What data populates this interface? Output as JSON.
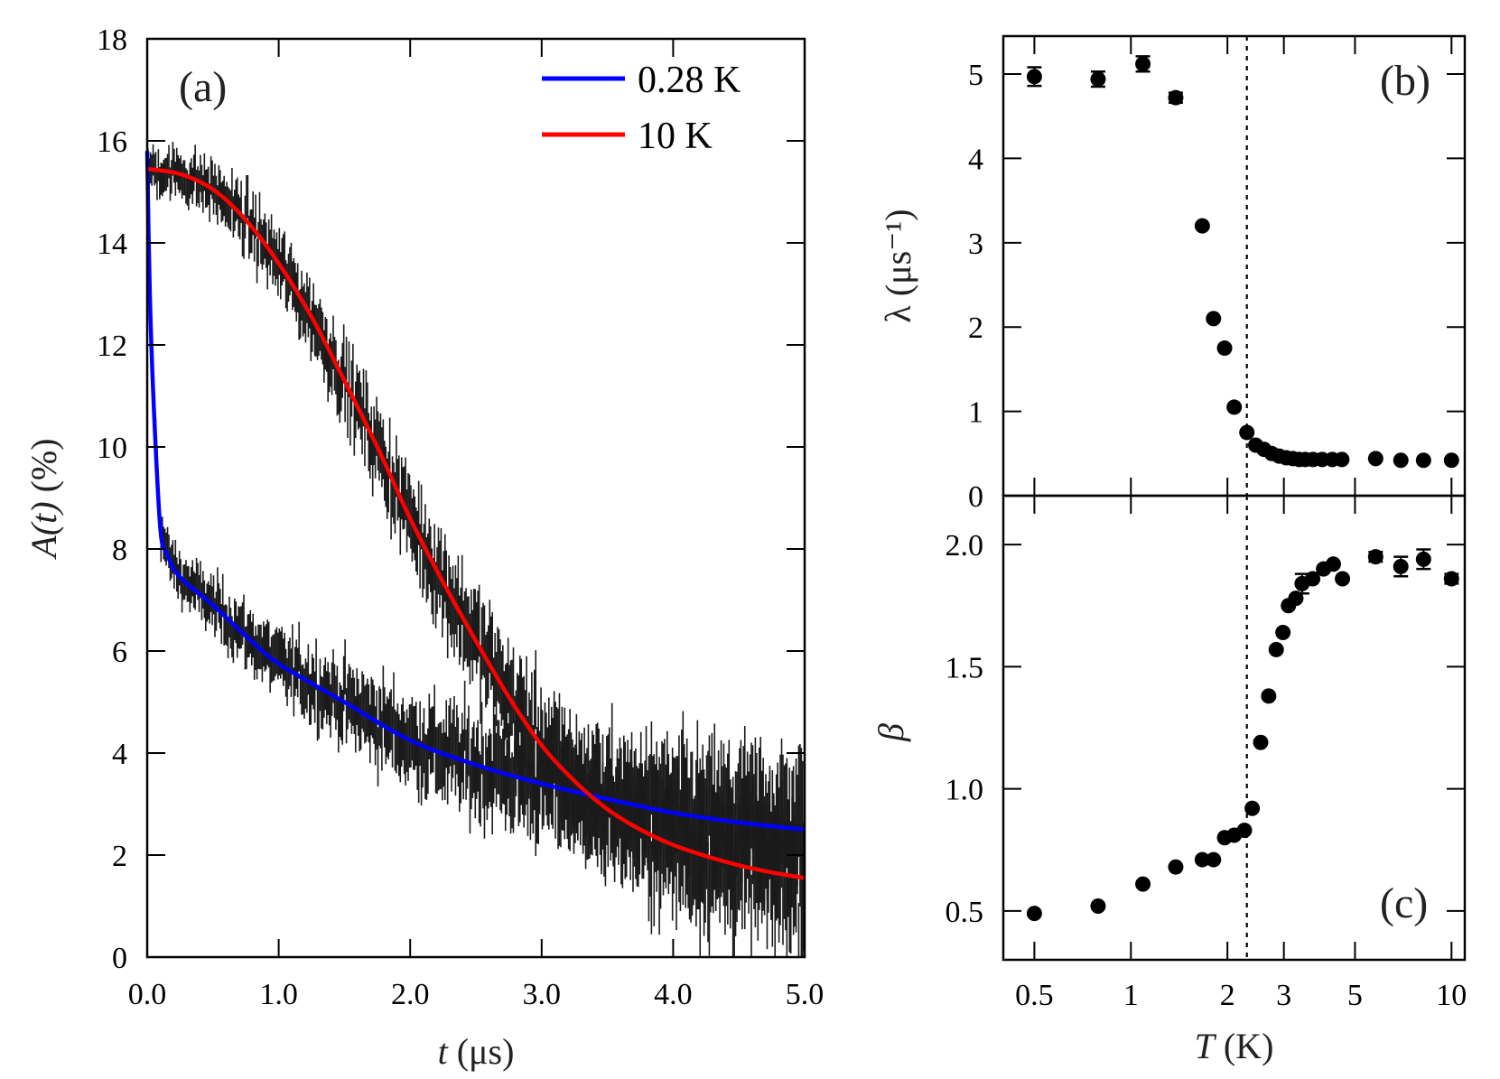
{
  "figure": {
    "panels": {
      "a": {
        "tag": "(a)",
        "xlabel_italic": "t",
        "xlabel_rest": " (μs)",
        "ylabel_italic": "A(t)",
        "ylabel_rest": " (%)",
        "xticks": [
          "0.0",
          "1.0",
          "2.0",
          "3.0",
          "4.0",
          "5.0"
        ],
        "yticks": [
          "0",
          "2",
          "4",
          "6",
          "8",
          "10",
          "12",
          "14",
          "16",
          "18"
        ],
        "legend": [
          {
            "label": "0.28 K",
            "color": "#0000ff"
          },
          {
            "label": "10 K",
            "color": "#ff0000"
          }
        ]
      },
      "b": {
        "tag": "(b)",
        "ylabel": "λ (μs⁻¹)",
        "yticks": [
          "0",
          "1",
          "2",
          "3",
          "4",
          "5"
        ]
      },
      "c": {
        "tag": "(c)",
        "ylabel": "β",
        "yticks": [
          "0.5",
          "1.0",
          "1.5",
          "2.0"
        ],
        "xticks": [
          "0.5",
          "1",
          "2",
          "3",
          "5",
          "10"
        ],
        "xlabel_italic": "T",
        "xlabel_rest": " (K)"
      }
    }
  },
  "chart_data": [
    {
      "panel": "a",
      "type": "line",
      "title": "(a)",
      "xlabel": "t (μs)",
      "ylabel": "A(t) (%)",
      "xlim": [
        0,
        5
      ],
      "ylim": [
        0,
        18
      ],
      "grid": false,
      "legend_position": "upper right",
      "series": [
        {
          "name": "0.28 K",
          "kind": "fit",
          "color": "#0000ff",
          "x": [
            0,
            0.02,
            0.05,
            0.1,
            0.15,
            0.25,
            0.5,
            0.75,
            1.0,
            1.5,
            2.0,
            2.5,
            3.0,
            3.5,
            4.0,
            4.5,
            5.0
          ],
          "y": [
            15.8,
            13.0,
            10.8,
            8.4,
            7.9,
            7.45,
            6.9,
            6.3,
            5.75,
            5.0,
            4.25,
            3.77,
            3.4,
            3.1,
            2.83,
            2.64,
            2.5
          ]
        },
        {
          "name": "10 K",
          "kind": "fit",
          "color": "#ff0000",
          "x": [
            0,
            0.25,
            0.5,
            0.75,
            1.0,
            1.25,
            1.5,
            1.75,
            2.0,
            2.25,
            2.5,
            2.75,
            3.0,
            3.25,
            3.5,
            3.75,
            4.0,
            4.25,
            4.5,
            4.75,
            5.0
          ],
          "y": [
            15.45,
            15.35,
            15.05,
            14.45,
            13.6,
            12.55,
            11.3,
            10.0,
            8.6,
            7.35,
            6.2,
            5.1,
            4.15,
            3.45,
            2.9,
            2.5,
            2.2,
            1.98,
            1.8,
            1.66,
            1.55
          ]
        },
        {
          "name": "0.28 K data",
          "kind": "data-with-errorbars",
          "color": "#000000",
          "points": 500,
          "noise_sigma_at_t0": 0.25,
          "noise_sigma_at_t5": 0.9,
          "errorbar_halfwidth_at_t0": 0.3,
          "errorbar_halfwidth_at_t5": 1.1
        },
        {
          "name": "10 K data",
          "kind": "data-with-errorbars",
          "color": "#000000",
          "points": 500,
          "noise_sigma_at_t0": 0.25,
          "noise_sigma_at_t5": 0.9,
          "errorbar_halfwidth_at_t0": 0.3,
          "errorbar_halfwidth_at_t5": 1.1
        }
      ]
    },
    {
      "panel": "b",
      "type": "scatter",
      "title": "(b)",
      "xlabel": "T (K)",
      "ylabel": "λ (μs⁻¹)",
      "xscale": "log",
      "xlim": [
        0.4,
        11
      ],
      "ylim": [
        0,
        5.45
      ],
      "vline": {
        "x": 2.3,
        "style": "dotted"
      },
      "x": [
        0.5,
        0.79,
        1.09,
        1.38,
        1.67,
        1.81,
        1.96,
        2.1,
        2.3,
        2.45,
        2.6,
        2.75,
        2.9,
        3.05,
        3.2,
        3.35,
        3.5,
        3.7,
        3.95,
        4.25,
        4.55,
        5.8,
        6.95,
        8.18,
        10
      ],
      "y": [
        4.97,
        4.94,
        5.12,
        4.72,
        3.2,
        2.1,
        1.75,
        1.05,
        0.75,
        0.6,
        0.55,
        0.5,
        0.47,
        0.45,
        0.44,
        0.43,
        0.43,
        0.43,
        0.43,
        0.43,
        0.43,
        0.44,
        0.42,
        0.42,
        0.42
      ],
      "yerr": [
        0.11,
        0.09,
        0.09,
        0.06,
        0,
        0,
        0,
        0,
        0,
        0,
        0,
        0,
        0,
        0,
        0,
        0,
        0,
        0,
        0,
        0,
        0,
        0,
        0,
        0,
        0
      ]
    },
    {
      "panel": "c",
      "type": "scatter",
      "title": "(c)",
      "xlabel": "T (K)",
      "ylabel": "β",
      "xscale": "log",
      "xlim": [
        0.4,
        11
      ],
      "ylim": [
        0.3,
        2.2
      ],
      "vline": {
        "x": 2.3,
        "style": "dotted"
      },
      "x": [
        0.5,
        0.79,
        1.09,
        1.38,
        1.67,
        1.81,
        1.96,
        2.1,
        2.26,
        2.39,
        2.54,
        2.69,
        2.84,
        2.98,
        3.1,
        3.27,
        3.42,
        3.69,
        3.99,
        4.28,
        4.57,
        5.8,
        6.95,
        8.18,
        10
      ],
      "y": [
        0.49,
        0.52,
        0.61,
        0.68,
        0.71,
        0.71,
        0.8,
        0.81,
        0.83,
        0.92,
        1.19,
        1.38,
        1.57,
        1.64,
        1.75,
        1.78,
        1.84,
        1.86,
        1.9,
        1.92,
        1.86,
        1.95,
        1.91,
        1.94,
        1.86
      ],
      "yerr": [
        0,
        0,
        0,
        0,
        0,
        0,
        0,
        0,
        0,
        0,
        0,
        0,
        0,
        0,
        0,
        0,
        0.04,
        0,
        0,
        0,
        0,
        0.02,
        0.04,
        0.04,
        0.02
      ]
    }
  ]
}
